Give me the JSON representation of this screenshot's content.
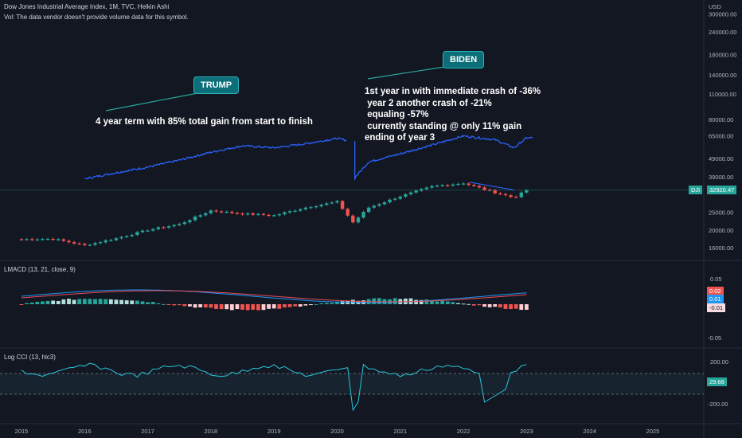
{
  "header": {
    "title": "Dow Jones Industrial Average Index, 1M, TVC, Heikin Ashi",
    "vol_note": "Vol: The data vendor doesn't provide volume data for this symbol."
  },
  "price_axis": {
    "currency": "USD",
    "ticks": [
      "300000.00",
      "240000.00",
      "180000.00",
      "140000.00",
      "110000.00",
      "80000.00",
      "65000.00",
      "49000.00",
      "39000.00",
      "25000.00",
      "20000.00",
      "16000.00"
    ],
    "tick_values": [
      300000,
      240000,
      180000,
      140000,
      110000,
      80000,
      65000,
      49000,
      39000,
      25000,
      20000,
      16000
    ],
    "symbol_badge": "DJI",
    "last_price": "32920.47"
  },
  "time_axis": {
    "ticks": [
      "2015",
      "2016",
      "2017",
      "2018",
      "2019",
      "2020",
      "2021",
      "2022",
      "2023",
      "2024",
      "2025"
    ]
  },
  "annotations": {
    "trump_label": "TRUMP",
    "trump_note": "4 year term with 85% total gain from start to finish",
    "biden_label": "BIDEN",
    "biden_note": "1st year in with immediate crash of -36%\n year 2 another crash of -21%\n equaling -57%\n currently standing @ only 11% gain\nending of year 3"
  },
  "lmacd": {
    "label": "LMACD (13, 21, close, 9)",
    "axis_ticks": [
      "0.05",
      "-0.05"
    ],
    "badges": [
      "0.02",
      "0.01",
      "-0.01"
    ]
  },
  "cci": {
    "label": "Log CCI (13, hlc3)",
    "axis_ticks": [
      "200.00",
      "-200.00"
    ],
    "badge": "29.68"
  },
  "colors": {
    "background": "#131722",
    "bull": "#26a69a",
    "bear": "#ef5350",
    "overlay_line": "#2962ff",
    "macd_line": "#2196f3",
    "signal_line": "#e84d5a",
    "cci_line": "#26c6da",
    "callout": "#0b6e78"
  },
  "chart_data": {
    "type": "line",
    "title": "Dow Jones Industrial Average Index, 1M, TVC, Heikin Ashi",
    "y_scale": "log",
    "ylim": [
      14500,
      330000
    ],
    "series": [
      {
        "name": "DJI",
        "x": [
          2015.0,
          2015.5,
          2016.0,
          2016.5,
          2017.0,
          2017.5,
          2018.0,
          2018.5,
          2019.0,
          2019.5,
          2020.0,
          2020.25,
          2020.5,
          2021.0,
          2021.5,
          2022.0,
          2022.5,
          2022.8,
          2023.0
        ],
        "values": [
          17800,
          17900,
          16500,
          18000,
          20000,
          21500,
          25500,
          24500,
          24000,
          26500,
          28500,
          22000,
          26500,
          30500,
          34500,
          36000,
          32000,
          30000,
          32920
        ]
      },
      {
        "name": "",
        "x": [
          2016.0,
          2016.5,
          2017.0,
          2017.5,
          2018.0,
          2018.5,
          2019.0,
          2019.5,
          2020.0,
          2020.2,
          2020.25,
          2020.5,
          2021.0,
          2021.5,
          2022.0,
          2022.5,
          2022.8,
          2023.0
        ],
        "values": [
          38000,
          41000,
          44000,
          48000,
          53000,
          57500,
          56000,
          59000,
          63000,
          61000,
          37500,
          47000,
          52000,
          58000,
          65000,
          62000,
          56000,
          63500
        ]
      }
    ]
  }
}
